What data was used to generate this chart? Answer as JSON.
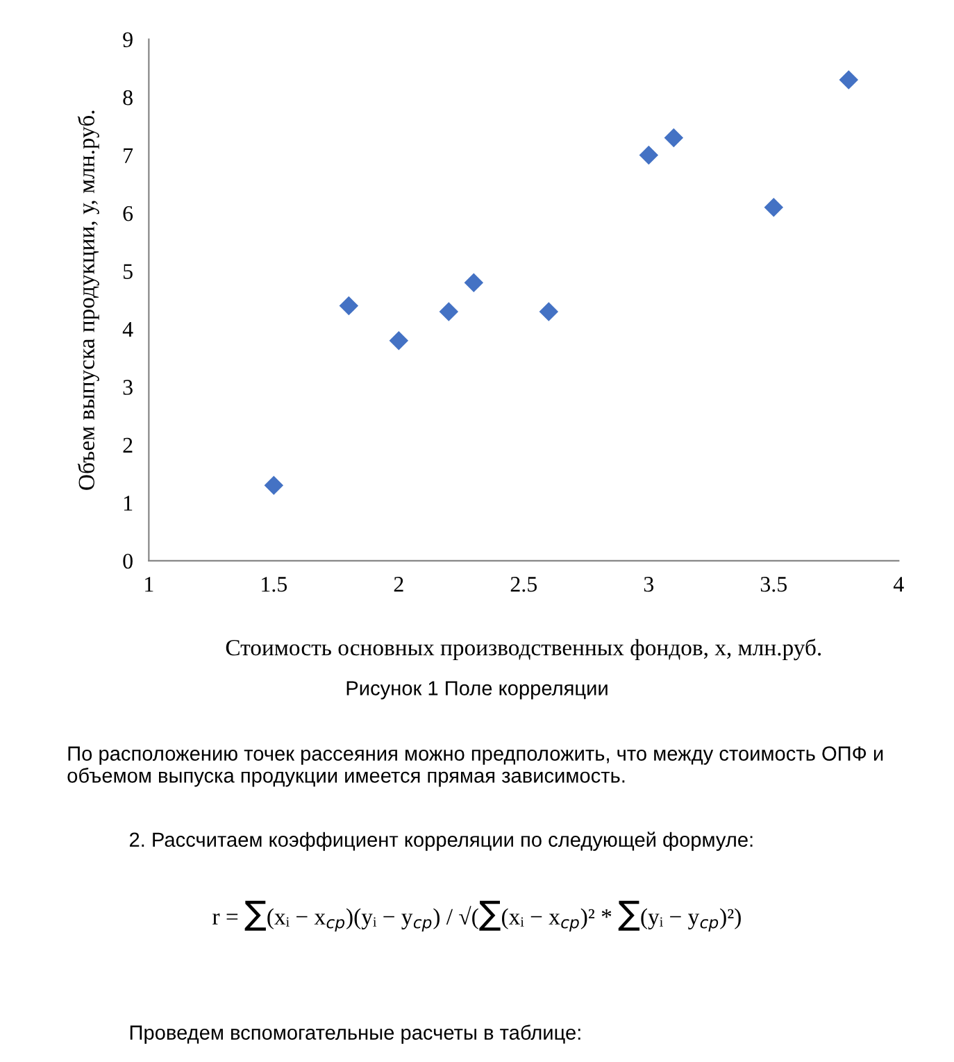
{
  "chart_data": {
    "type": "scatter",
    "xlabel": "Стоимость основных производственных фондов, х, млн.руб.",
    "ylabel": "Объем выпуска продукции, у, млн.руб.",
    "x": [
      1.5,
      1.8,
      2.0,
      2.2,
      2.3,
      2.6,
      3.0,
      3.1,
      3.5,
      3.8
    ],
    "values": [
      1.3,
      4.4,
      3.8,
      4.3,
      4.8,
      4.3,
      7.0,
      7.3,
      6.1,
      8.3
    ],
    "color": "#4472c4",
    "marker": "diamond",
    "grid": false,
    "xlim": [
      1,
      4
    ],
    "xticks": [
      1,
      1.5,
      2,
      2.5,
      3,
      3.5,
      4
    ],
    "ylim": [
      0,
      9
    ],
    "yticks": [
      0,
      1,
      2,
      3,
      4,
      5,
      6,
      7,
      8,
      9
    ],
    "annotations": [
      "Рисунок 1 Поле корреляции",
      "По расположению точек рассеяния можно предположить, что между стоимость ОПФ и объемом выпуска продукции имеется прямая зависимость.",
      "2. Рассчитаем коэффициент корреляции по следующей формуле:",
      "r = ∑(xᵢ − x$_{ср}$)(yᵢ − y$_{ср}$) / √(∑(xᵢ − x$_{ср}$)² * ∑(yᵢ − y$_{ср}$)²)",
      "Проведем вспомогательные расчеты в таблице:"
    ]
  }
}
